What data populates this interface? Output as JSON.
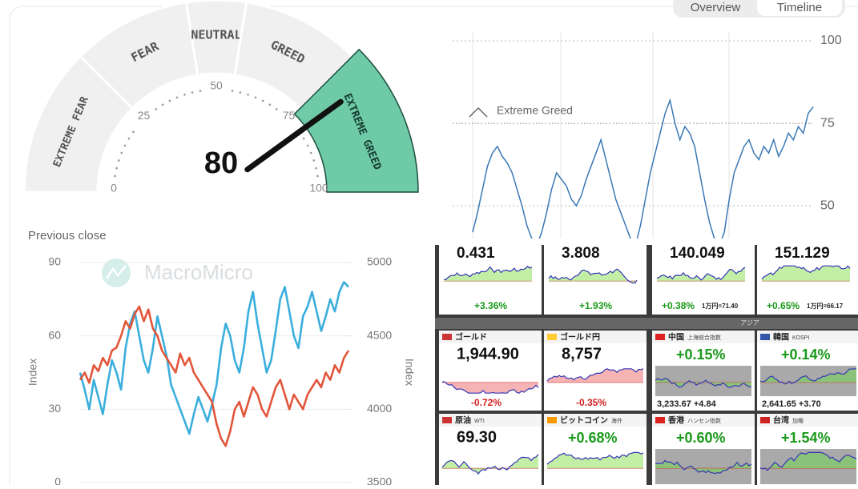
{
  "chart_data": [
    {
      "type": "gauge",
      "value": 80,
      "range": [
        0,
        100
      ],
      "ticks": [
        0,
        25,
        50,
        75,
        100
      ],
      "segments": [
        {
          "label": "EXTREME FEAR",
          "range": [
            0,
            25
          ]
        },
        {
          "label": "FEAR",
          "range": [
            25,
            45
          ]
        },
        {
          "label": "NEUTRAL",
          "range": [
            45,
            55
          ]
        },
        {
          "label": "GREED",
          "range": [
            55,
            75
          ]
        },
        {
          "label": "EXTREME GREED",
          "range": [
            75,
            100
          ]
        }
      ],
      "color": "#f0f0f0",
      "highlight_color": "#6fcaa8",
      "caption": "Previous close"
    },
    {
      "type": "line",
      "tabs": [
        "Overview",
        "Timeline"
      ],
      "color": "#3a78b5",
      "values": [
        42,
        48,
        55,
        62,
        66,
        68,
        65,
        63,
        60,
        55,
        50,
        44,
        40,
        38,
        42,
        48,
        55,
        60,
        58,
        56,
        52,
        50,
        53,
        58,
        62,
        66,
        70,
        64,
        58,
        52,
        48,
        44,
        40,
        38,
        44,
        52,
        60,
        66,
        72,
        78,
        82,
        75,
        70,
        74,
        72,
        68,
        60,
        52,
        45,
        40,
        38,
        42,
        52,
        60,
        64,
        68,
        70,
        66,
        64,
        68,
        66,
        70,
        65,
        68,
        72,
        70,
        74,
        72,
        78,
        80
      ],
      "ylim": [
        35,
        100
      ],
      "yticks": [
        50,
        75,
        100
      ],
      "grid": true,
      "annotation": {
        "label": "Extreme Greed",
        "value": 75
      }
    },
    {
      "type": "line",
      "watermark": "MacroMicro",
      "ylabel": "Index",
      "y2label": "Index",
      "ylim": [
        0,
        90
      ],
      "yticks": [
        0,
        30,
        60,
        90
      ],
      "y2lim": [
        3500,
        5000
      ],
      "y2ticks": [
        3500,
        4000,
        4500,
        5000
      ],
      "grid": true,
      "series": [
        {
          "color": "#3aaedc",
          "values": [
            45,
            38,
            30,
            42,
            35,
            28,
            40,
            50,
            45,
            38,
            55,
            65,
            70,
            60,
            50,
            45,
            55,
            68,
            60,
            52,
            40,
            35,
            30,
            25,
            20,
            28,
            35,
            30,
            25,
            32,
            40,
            55,
            65,
            60,
            50,
            45,
            55,
            70,
            78,
            65,
            55,
            45,
            50,
            62,
            75,
            80,
            70,
            60,
            55,
            68,
            72,
            78,
            70,
            62,
            68,
            75,
            70,
            78,
            82,
            80
          ]
        },
        {
          "color": "#e2553a",
          "axis": "y2",
          "values": [
            4200,
            4250,
            4180,
            4300,
            4260,
            4350,
            4300,
            4400,
            4420,
            4500,
            4600,
            4550,
            4650,
            4700,
            4600,
            4680,
            4550,
            4500,
            4400,
            4350,
            4300,
            4250,
            4380,
            4300,
            4350,
            4250,
            4200,
            4150,
            4100,
            4050,
            3900,
            3800,
            3750,
            3850,
            4000,
            4050,
            3950,
            4050,
            4150,
            4100,
            4000,
            3950,
            4050,
            4150,
            4200,
            4100,
            4000,
            4100,
            4050,
            4000,
            4100,
            4150,
            4200,
            4150,
            4250,
            4200,
            4300,
            4250,
            4350,
            4400
          ]
        }
      ]
    }
  ],
  "tiles": {
    "top_row": [
      {
        "value": "0.431",
        "change": "+3.36%"
      },
      {
        "value": "3.808",
        "change": "+1.93%"
      },
      {
        "value": "140.049",
        "change": "+0.38%",
        "note": "1万円=71.40"
      },
      {
        "value": "151.129",
        "change": "+0.65%",
        "note": "1万円=66.17"
      }
    ],
    "section": "アジア",
    "grid": [
      {
        "name": "ゴールド",
        "value": "1,944.90",
        "change": "-0.72%"
      },
      {
        "name": "ゴールド円",
        "value": "8,757",
        "change": "-0.35%"
      },
      {
        "name": "中国",
        "sub": "上海総合指数",
        "change": "+0.15%",
        "footer": "3,233.67 +4.84"
      },
      {
        "name": "韓国",
        "sub": "KOSPI",
        "change": "+0.14%",
        "footer": "2,641.65 +3.70"
      },
      {
        "name": "原油",
        "sub": "WTI",
        "value": "69.30"
      },
      {
        "name": "ビットコイン",
        "sub": "海外",
        "change": "+0.68%"
      },
      {
        "name": "香港",
        "sub": "ハンセン指数",
        "change": "+0.60%"
      },
      {
        "name": "台湾",
        "sub": "加権",
        "change": "+1.54%"
      }
    ]
  }
}
